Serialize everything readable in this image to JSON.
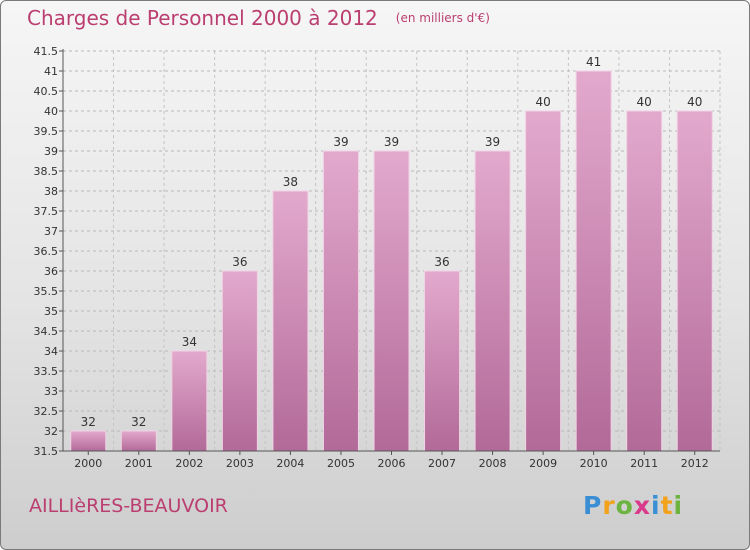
{
  "chart_data": {
    "type": "bar",
    "title": "Charges de Personnel 2000 à 2012",
    "subtitle": "(en milliers d'€)",
    "categories": [
      "2000",
      "2001",
      "2002",
      "2003",
      "2004",
      "2005",
      "2006",
      "2007",
      "2008",
      "2009",
      "2010",
      "2011",
      "2012"
    ],
    "values": [
      32,
      32,
      34,
      36,
      38,
      39,
      39,
      36,
      39,
      40,
      41,
      40,
      40
    ],
    "value_labels": [
      "32",
      "32",
      "34",
      "36",
      "38",
      "39",
      "39",
      "36",
      "39",
      "40",
      "41",
      "40",
      "40"
    ],
    "ylim": [
      31.5,
      41.5
    ],
    "yticks": [
      "31.5",
      "32",
      "32.5",
      "33",
      "33.5",
      "34",
      "34.5",
      "35",
      "35.5",
      "36",
      "36.5",
      "37",
      "37.5",
      "38",
      "38.5",
      "39",
      "39.5",
      "40",
      "40.5",
      "41",
      "41.5"
    ],
    "grid": true,
    "xlabel": "",
    "ylabel": "",
    "bar_color": "#d890b8",
    "accent_color": "#bb3e70"
  },
  "footer": {
    "commune": "AILLIèRES-BEAUVOIR",
    "logo_letters": [
      "P",
      "r",
      "o",
      "x",
      "i",
      "t",
      "i"
    ],
    "logo_colors": [
      "#3a8fd4",
      "#f2a21b",
      "#6cb43f",
      "#d93a8c",
      "#3a8fd4",
      "#f2a21b",
      "#6cb43f"
    ]
  }
}
